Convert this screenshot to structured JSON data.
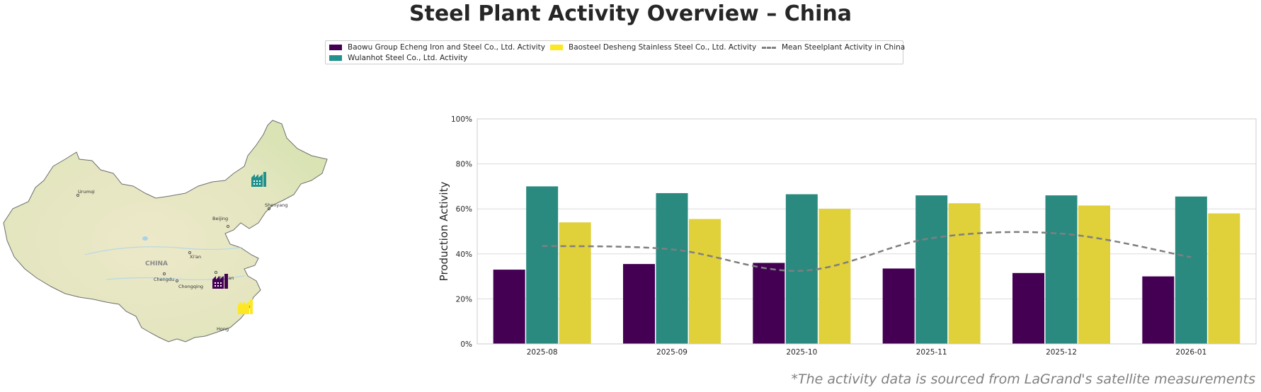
{
  "title": "Steel Plant Activity Overview – China",
  "footnote": "*The activity data is sourced from LaGrand's satellite measurements",
  "legend": [
    {
      "label": "Baowu Group Echeng Iron and Steel Co., Ltd. Activity",
      "color": "#440154",
      "kind": "bar"
    },
    {
      "label": "Baosteel Desheng Stainless Steel Co., Ltd. Activity",
      "color": "#fde725",
      "kind": "bar"
    },
    {
      "label": "Mean Steelplant Activity in China",
      "color": "#7f7f7f",
      "kind": "line"
    },
    {
      "label": "Wulanhot Steel Co., Ltd. Activity",
      "color": "#21918c",
      "kind": "bar"
    }
  ],
  "map": {
    "cities": [
      "Urumqi",
      "Beijing",
      "Shenyang",
      "CHINA",
      "Xi'an",
      "Chengdu",
      "Chongqing",
      "Wuhan",
      "Hong"
    ],
    "markers": [
      {
        "name": "Wulanhot Steel Co., Ltd.",
        "color": "#21918c",
        "icon": "factory-icon"
      },
      {
        "name": "Baowu Group Echeng Iron and Steel Co., Ltd.",
        "color": "#440154",
        "icon": "factory-icon"
      },
      {
        "name": "Baosteel Desheng Stainless Steel Co., Ltd.",
        "color": "#fde725",
        "icon": "factory-icon"
      }
    ]
  },
  "chart_data": {
    "type": "bar",
    "categories": [
      "2025-08",
      "2025-09",
      "2025-10",
      "2025-11",
      "2025-12",
      "2026-01"
    ],
    "series": [
      {
        "name": "Baowu Group Echeng Iron and Steel Co., Ltd. Activity",
        "color": "#440154",
        "values": [
          33,
          35.5,
          36,
          33.5,
          31.5,
          30
        ]
      },
      {
        "name": "Wulanhot Steel Co., Ltd. Activity",
        "color": "#2a8a80",
        "values": [
          70,
          67,
          66.5,
          66,
          66,
          65.5
        ]
      },
      {
        "name": "Baosteel Desheng Stainless Steel Co., Ltd. Activity",
        "color": "#e0d03a",
        "values": [
          54,
          55.5,
          60,
          62.5,
          61.5,
          58
        ]
      }
    ],
    "line": {
      "name": "Mean Steelplant Activity in China",
      "color": "#7f7f7f",
      "values": [
        43.5,
        42,
        32.5,
        47,
        49,
        38.5
      ]
    },
    "ylabel": "Production Activity",
    "xlabel": "",
    "ylim": [
      0,
      100
    ],
    "yticks": [
      0,
      20,
      40,
      60,
      80,
      100
    ],
    "ytick_labels": [
      "0%",
      "20%",
      "40%",
      "60%",
      "80%",
      "100%"
    ],
    "grid": true
  }
}
